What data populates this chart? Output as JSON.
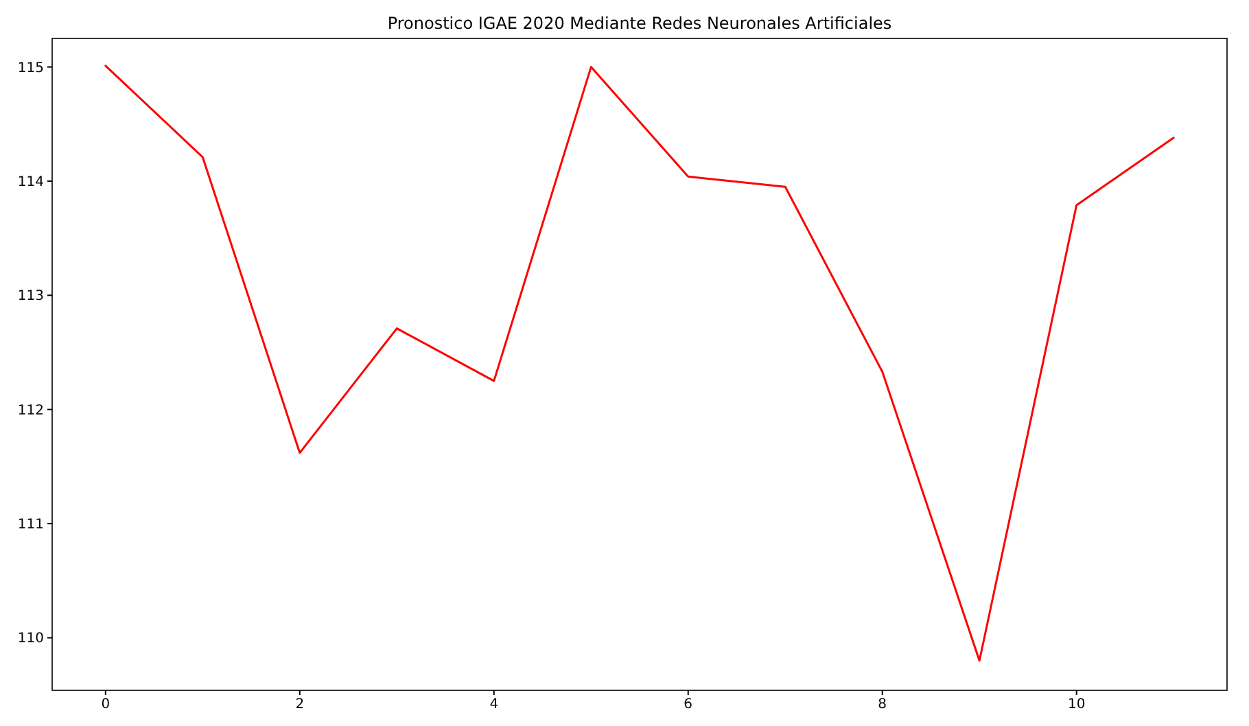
{
  "chart_data": {
    "type": "line",
    "title": "Pronostico IGAE 2020 Mediante Redes Neuronales Artificiales",
    "x": [
      0,
      1,
      2,
      3,
      4,
      5,
      6,
      7,
      8,
      9,
      10,
      11
    ],
    "series": [
      {
        "color": "#ff0000",
        "values": [
          115.01,
          114.21,
          111.62,
          112.71,
          112.25,
          115.0,
          114.04,
          113.95,
          112.33,
          109.8,
          113.79,
          114.38
        ]
      }
    ],
    "xlim": [
      -0.55,
      11.55
    ],
    "ylim": [
      109.54,
      115.25
    ],
    "xticks": [
      0,
      2,
      4,
      6,
      8,
      10
    ],
    "yticks": [
      110,
      111,
      112,
      113,
      114,
      115
    ],
    "grid": false
  }
}
